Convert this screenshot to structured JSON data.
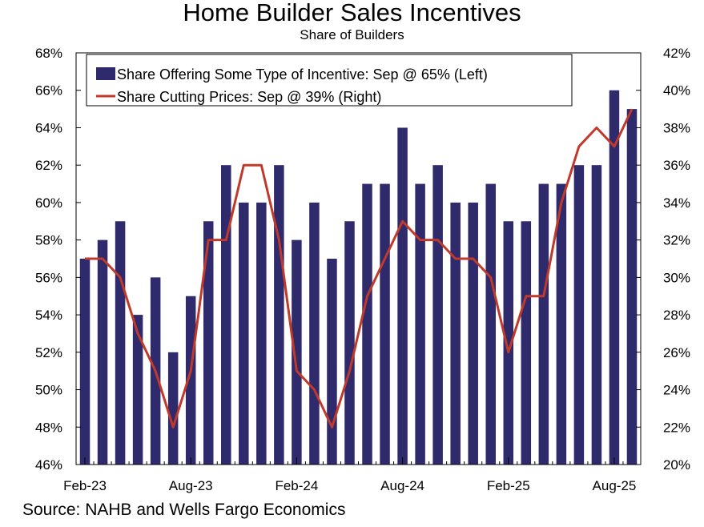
{
  "title": "Home Builder Sales Incentives",
  "subtitle": "Share of Builders",
  "source": "Source: NAHB and Wells Fargo Economics",
  "colors": {
    "bar": "#2e2a6b",
    "line": "#c0392b",
    "axis": "#000000"
  },
  "chart_data": {
    "type": "bar",
    "months": [
      "Feb-23",
      "Mar-23",
      "Apr-23",
      "May-23",
      "Jun-23",
      "Jul-23",
      "Aug-23",
      "Sep-23",
      "Oct-23",
      "Nov-23",
      "Dec-23",
      "Jan-24",
      "Feb-24",
      "Mar-24",
      "Apr-24",
      "May-24",
      "Jun-24",
      "Jul-24",
      "Aug-24",
      "Sep-24",
      "Oct-24",
      "Nov-24",
      "Dec-24",
      "Jan-25",
      "Feb-25",
      "Mar-25",
      "Apr-25",
      "May-25",
      "Jun-25",
      "Jul-25",
      "Aug-25",
      "Sep-25"
    ],
    "x_tick_labels": [
      "Feb-23",
      "Aug-23",
      "Feb-24",
      "Aug-24",
      "Feb-25",
      "Aug-25"
    ],
    "left_axis": {
      "min": 46,
      "max": 68,
      "step": 2,
      "labels": [
        "46%",
        "48%",
        "50%",
        "52%",
        "54%",
        "56%",
        "58%",
        "60%",
        "62%",
        "64%",
        "66%",
        "68%"
      ]
    },
    "right_axis": {
      "min": 20,
      "max": 42,
      "step": 2,
      "labels": [
        "20%",
        "22%",
        "24%",
        "26%",
        "28%",
        "30%",
        "32%",
        "34%",
        "36%",
        "38%",
        "40%",
        "42%"
      ]
    },
    "series": [
      {
        "name": "Share Offering Some Type of Incentive: Sep @ 65% (Left)",
        "type": "bar",
        "axis": "left",
        "values": [
          57,
          58,
          59,
          54,
          56,
          52,
          55,
          59,
          62,
          60,
          60,
          62,
          58,
          60,
          57,
          59,
          61,
          61,
          64,
          61,
          62,
          60,
          60,
          61,
          59,
          59,
          61,
          61,
          62,
          62,
          66,
          65
        ]
      },
      {
        "name": "Share Cutting Prices: Sep @ 39% (Right)",
        "type": "line",
        "axis": "right",
        "values": [
          31,
          31,
          30,
          27,
          25,
          22,
          25,
          32,
          32,
          36,
          36,
          32,
          25,
          24,
          22,
          25,
          29,
          31,
          33,
          32,
          32,
          31,
          31,
          30,
          26,
          29,
          29,
          34,
          37,
          38,
          37,
          39
        ]
      }
    ],
    "legend_placement": "top-left",
    "grid": false
  }
}
